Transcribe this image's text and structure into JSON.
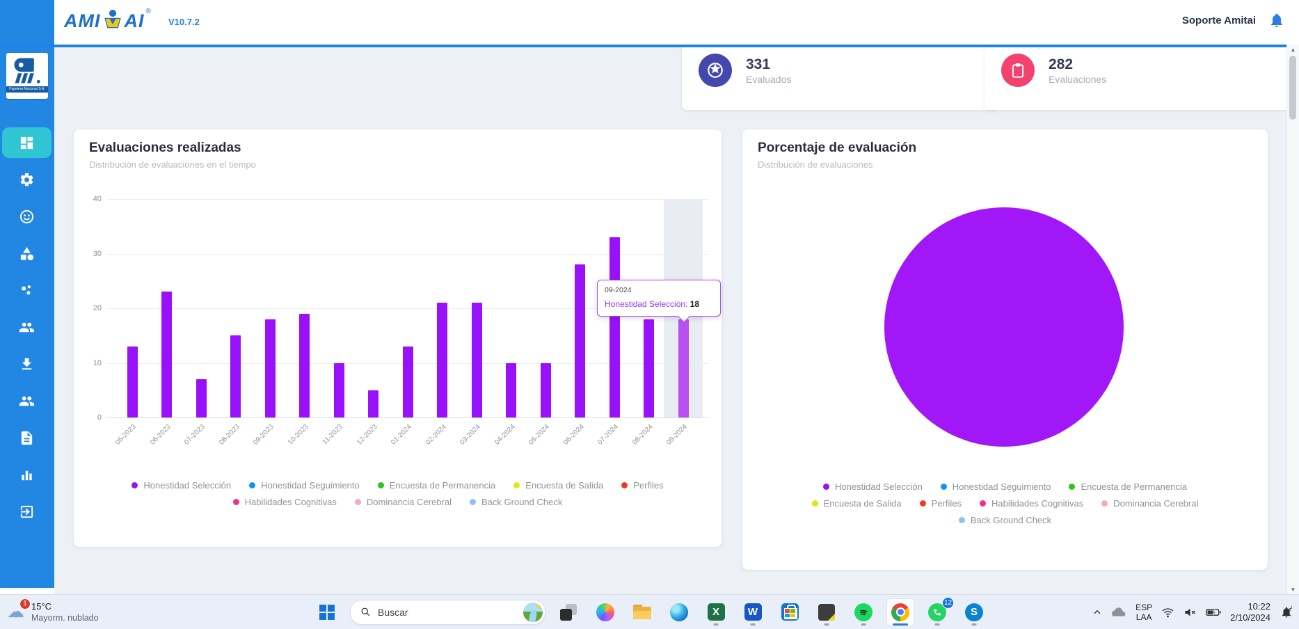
{
  "header": {
    "brand": "AMITAI",
    "brand_left": "AMI",
    "brand_right": "AI",
    "brand_reg": "®",
    "version": "V10.7.2",
    "support_label": "Soporte Amitai"
  },
  "sidebar": {
    "logo_caption": "Papelera Nacional S.A.",
    "items": [
      {
        "id": "dashboard",
        "icon": "dashboard-icon",
        "active": true
      },
      {
        "id": "settings",
        "icon": "gear-icon",
        "active": false
      },
      {
        "id": "mood",
        "icon": "face-icon",
        "active": false
      },
      {
        "id": "categories",
        "icon": "shapes-icon",
        "active": false
      },
      {
        "id": "scatter",
        "icon": "share-dots-icon",
        "active": false
      },
      {
        "id": "people",
        "icon": "people-icon",
        "active": false
      },
      {
        "id": "downloads",
        "icon": "download-icon",
        "active": false
      },
      {
        "id": "groups",
        "icon": "people-alt-icon",
        "active": false
      },
      {
        "id": "documents",
        "icon": "document-icon",
        "active": false
      },
      {
        "id": "reports",
        "icon": "bar-chart-icon",
        "active": false
      },
      {
        "id": "logout",
        "icon": "exit-icon",
        "active": false
      }
    ]
  },
  "stats": [
    {
      "value": "331",
      "label": "Evaluados",
      "icon": "star-circle-icon",
      "color": "#4347ae"
    },
    {
      "value": "282",
      "label": "Evaluaciones",
      "icon": "clipboard-icon",
      "color": "#f4426e"
    }
  ],
  "chart_data": [
    {
      "type": "bar",
      "title": "Evaluaciones realizadas",
      "subtitle": "Distribución de evaluaciones en el tiempo",
      "categories": [
        "05-2023",
        "06-2023",
        "07-2023",
        "08-2023",
        "09-2023",
        "10-2023",
        "11-2023",
        "12-2023",
        "01-2024",
        "02-2024",
        "03-2024",
        "04-2024",
        "05-2024",
        "06-2024",
        "07-2024",
        "08-2024",
        "09-2024"
      ],
      "series": [
        {
          "name": "Honestidad Selección",
          "color": "#9911fa",
          "values": [
            13,
            23,
            7,
            15,
            18,
            19,
            10,
            5,
            13,
            21,
            21,
            10,
            10,
            28,
            33,
            18,
            18
          ]
        }
      ],
      "ylim": [
        0,
        40
      ],
      "yticks": [
        0,
        10,
        20,
        30,
        40
      ],
      "grid": true,
      "legend_position": "bottom",
      "highlight_index": 16,
      "legend": [
        {
          "label": "Honestidad Selección",
          "color": "#9911fa"
        },
        {
          "label": "Honestidad Seguimiento",
          "color": "#1193f0"
        },
        {
          "label": "Encuesta de Permanencia",
          "color": "#2ec41f"
        },
        {
          "label": "Encuesta de Salida",
          "color": "#dfe812"
        },
        {
          "label": "Perfiles",
          "color": "#ef3b21"
        },
        {
          "label": "Habilidades Cognitivas",
          "color": "#f0308c"
        },
        {
          "label": "Dominancia Cerebral",
          "color": "#f6abb6"
        },
        {
          "label": "Back Ground Check",
          "color": "#8fc1f2"
        }
      ],
      "legend_rows": [
        5,
        3
      ]
    },
    {
      "type": "pie",
      "title": "Porcentaje de evaluación",
      "subtitle": "Distribución de evaluaciones",
      "slices": [
        {
          "label": "Honestidad Selección",
          "value": 100,
          "color": "#a217f7"
        }
      ],
      "legend": [
        {
          "label": "Honestidad Selección",
          "color": "#9911fa"
        },
        {
          "label": "Honestidad Seguimiento",
          "color": "#1193f0"
        },
        {
          "label": "Encuesta de Permanencia",
          "color": "#2ec41f"
        },
        {
          "label": "Encuesta de Salida",
          "color": "#dfe812"
        },
        {
          "label": "Perfiles",
          "color": "#ef3b21"
        },
        {
          "label": "Habilidades Cognitivas",
          "color": "#f0308c"
        },
        {
          "label": "Dominancia Cerebral",
          "color": "#f6abb6"
        },
        {
          "label": "Back Ground Check",
          "color": "#8fc1f2"
        }
      ],
      "legend_rows": [
        3,
        4,
        1
      ]
    }
  ],
  "bar_tooltip": {
    "category": "09-2024",
    "series": "Honestidad Selección",
    "value": "18"
  },
  "taskbar": {
    "weather": {
      "badge": "1",
      "temp": "15°C",
      "condition": "Mayorm. nublado"
    },
    "search": {
      "placeholder": "Buscar"
    },
    "apps": [
      {
        "id": "task-view",
        "icon": "taskview-icon",
        "running": false,
        "active": false
      },
      {
        "id": "copilot",
        "icon": "copilot-icon",
        "running": false,
        "active": false
      },
      {
        "id": "file-explorer",
        "icon": "folder-icon",
        "running": false,
        "active": false
      },
      {
        "id": "edge",
        "icon": "edge-icon",
        "running": false,
        "active": false
      },
      {
        "id": "excel",
        "icon": "excel-icon",
        "running": true,
        "active": false
      },
      {
        "id": "word",
        "icon": "word-icon",
        "running": true,
        "active": false
      },
      {
        "id": "store",
        "icon": "store-icon",
        "running": false,
        "active": false
      },
      {
        "id": "sticky-notes",
        "icon": "notes-icon",
        "running": true,
        "active": false
      },
      {
        "id": "spotify",
        "icon": "spotify-icon",
        "running": true,
        "active": false
      },
      {
        "id": "chrome",
        "icon": "chrome-icon",
        "running": true,
        "active": true
      },
      {
        "id": "whatsapp",
        "icon": "whatsapp-icon",
        "running": true,
        "active": false,
        "badge": "12"
      },
      {
        "id": "skype",
        "icon": "skype-icon",
        "running": true,
        "active": false
      }
    ],
    "tray": {
      "lang_top": "ESP",
      "lang_bottom": "LAA",
      "time": "10:22",
      "date": "2/10/2024"
    }
  }
}
